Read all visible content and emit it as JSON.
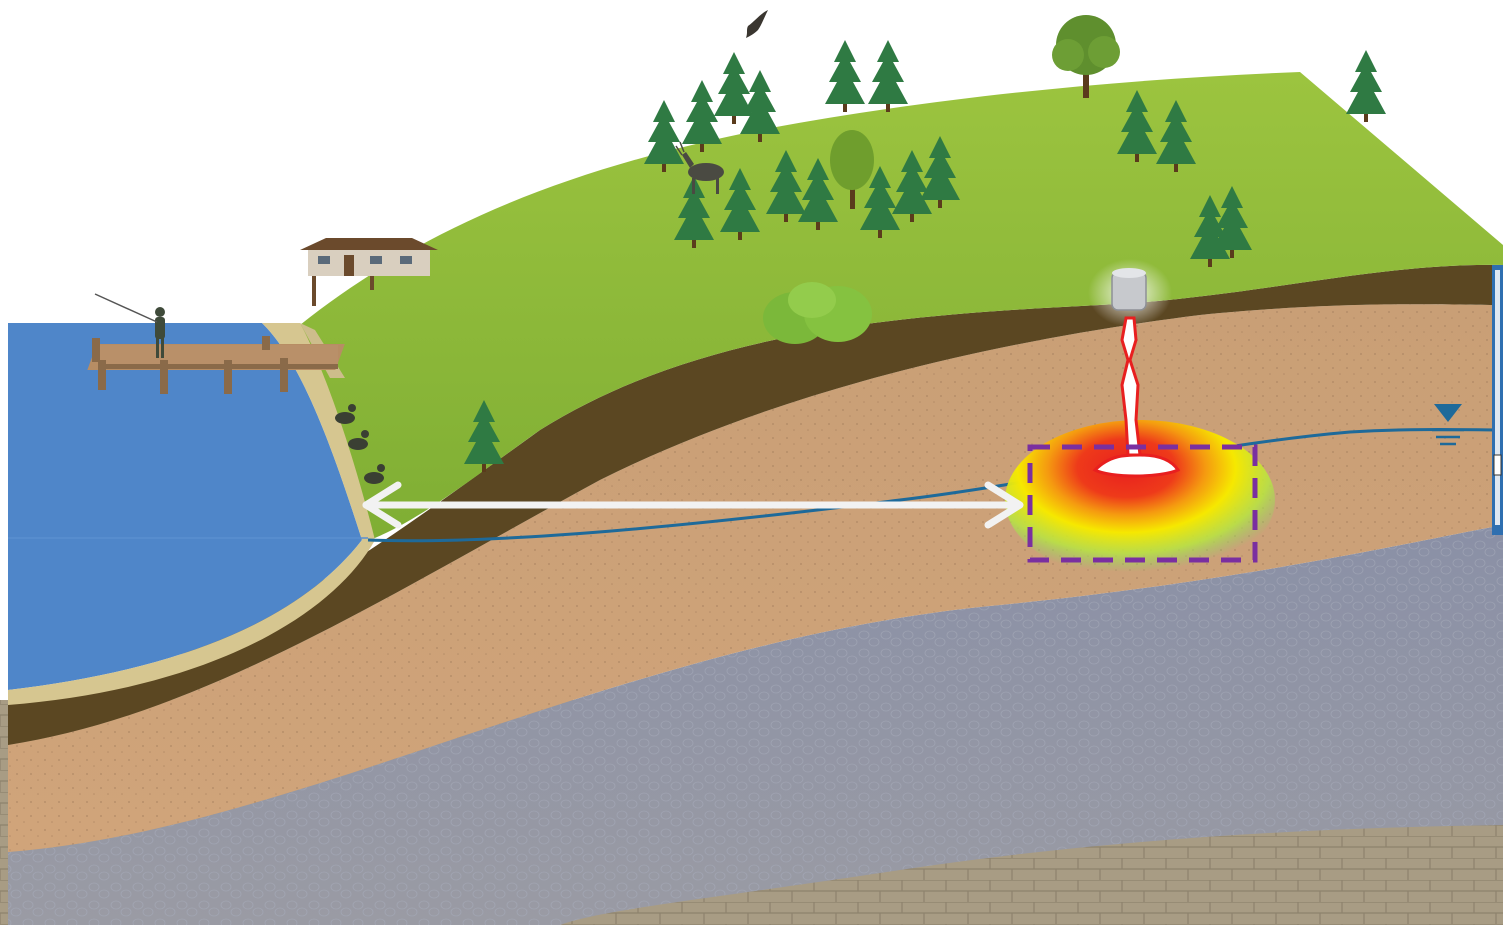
{
  "diagram": {
    "layers": [
      "grass-hillside",
      "topsoil",
      "sand-aquifer",
      "gravel-aquifer",
      "bedrock"
    ],
    "features": [
      "lake",
      "fishing-dock",
      "fisherman",
      "lakeside-house",
      "ducks",
      "trees",
      "shrubs",
      "bird",
      "deer",
      "leaking-tank",
      "contaminant-plume",
      "water-table",
      "monitoring-well",
      "distance-arrow",
      "plume-boundary-box"
    ],
    "colors": {
      "lake": "#4f86c9",
      "grass": "#8dbb3a",
      "topsoil": "#5b4722",
      "sand": "#c9a27a",
      "gravel": "#8a93a8",
      "bedrock": "#a69a83",
      "water_table": "#1e6a9a",
      "plume_core": "#e81f1f",
      "plume_mid": "#f5e400",
      "plume_edge": "#9de05a",
      "boundary_box": "#7a2fa0",
      "arrow": "#f2f2f2"
    }
  }
}
